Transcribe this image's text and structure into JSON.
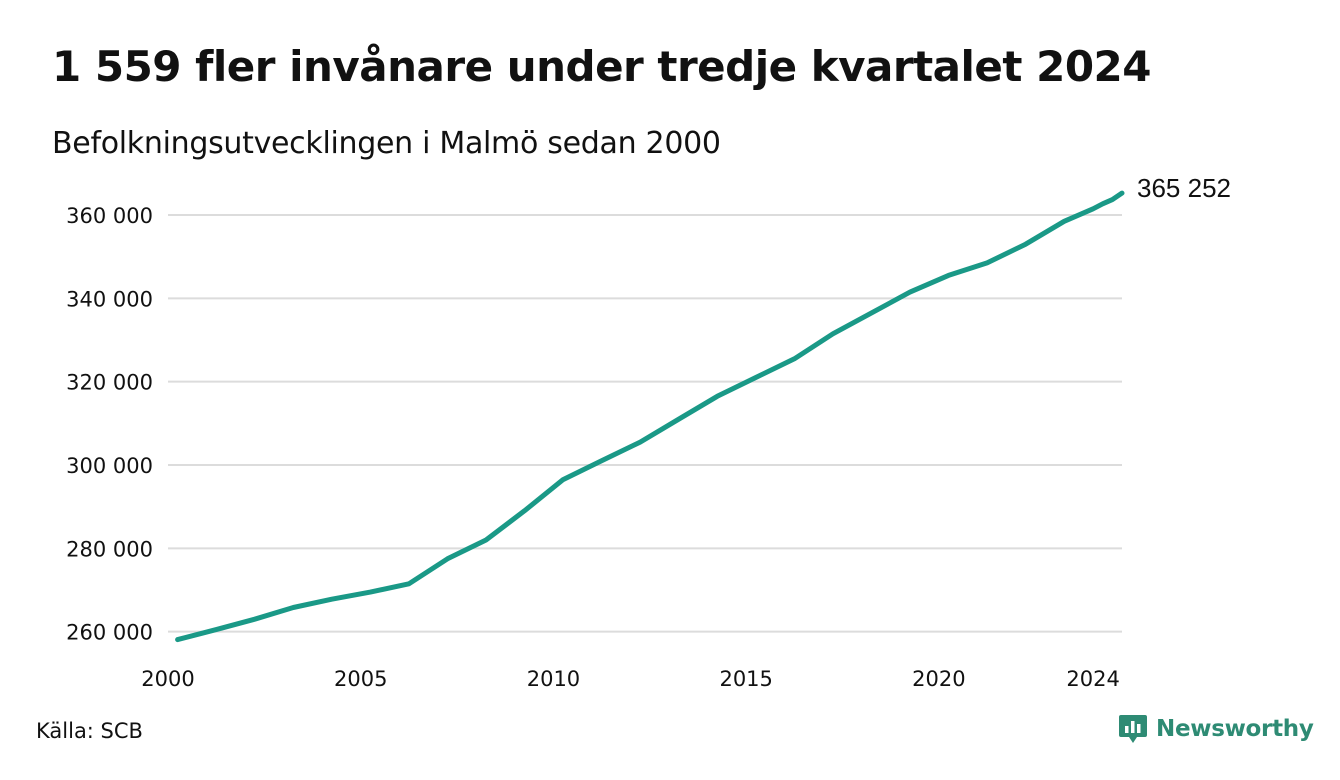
{
  "header": {
    "title": "1 559 fler invånare under tredje kvartalet 2024",
    "subtitle": "Befolkningsutvecklingen i Malmö sedan 2000"
  },
  "footer": {
    "source": "Källa: SCB",
    "brand": "Newsworthy"
  },
  "colors": {
    "line": "#1a9987",
    "grid": "#dcdcdc",
    "brand": "#2e8b74",
    "text": "#111111"
  },
  "chart_data": {
    "type": "line",
    "title": "1 559 fler invånare under tredje kvartalet 2024",
    "subtitle": "Befolkningsutvecklingen i Malmö sedan 2000",
    "xlabel": "",
    "ylabel": "",
    "xlim": [
      2000,
      2024.75
    ],
    "ylim": [
      258000,
      366000
    ],
    "grid": true,
    "yticks": [
      260000,
      280000,
      300000,
      320000,
      340000,
      360000
    ],
    "ytick_labels": [
      "260 000",
      "280 000",
      "300 000",
      "320 000",
      "340 000",
      "360 000"
    ],
    "xticks": [
      2000,
      2005,
      2010,
      2015,
      2020,
      2024
    ],
    "xtick_labels": [
      "2000",
      "2005",
      "2010",
      "2015",
      "2020",
      "2024"
    ],
    "end_label": "365 252",
    "series": [
      {
        "x": [
          2000.25,
          2001.25,
          2002.25,
          2003.25,
          2004.25,
          2005.25,
          2006.25,
          2007.25,
          2008.25,
          2009.25,
          2010.25,
          2011.25,
          2012.25,
          2013.25,
          2014.25,
          2015.25,
          2016.25,
          2017.25,
          2018.25,
          2019.25,
          2020.25,
          2021.25,
          2022.25,
          2023.25,
          2024.0,
          2024.25,
          2024.5,
          2024.75
        ],
        "values": [
          258100,
          260500,
          263000,
          265800,
          267800,
          269500,
          271500,
          277500,
          282000,
          289000,
          296500,
          301000,
          305500,
          311000,
          316500,
          321000,
          325500,
          331500,
          336500,
          341500,
          345500,
          348500,
          353000,
          358500,
          361500,
          362700,
          363700,
          365252
        ]
      }
    ]
  }
}
